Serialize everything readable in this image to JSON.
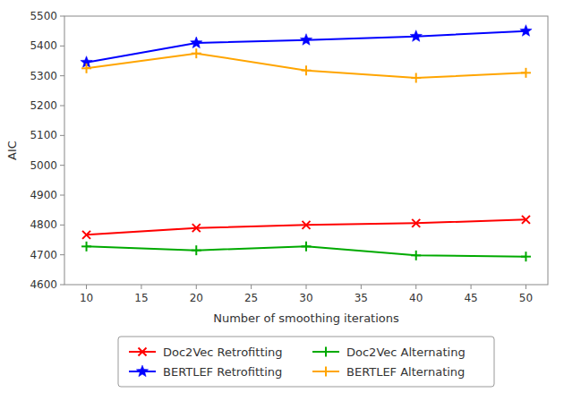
{
  "chart_data": {
    "type": "line",
    "x_label": "Number of smoothing iterations",
    "y_label": "AIC",
    "x": [
      10,
      20,
      30,
      40,
      50
    ],
    "series": [
      {
        "name": "Doc2Vec Retrofitting",
        "color": "#ff0000",
        "marker": "x",
        "values": [
          4767,
          4790,
          4800,
          4806,
          4818
        ]
      },
      {
        "name": "Doc2Vec Alternating",
        "color": "#00aa00",
        "marker": "plus",
        "values": [
          4728,
          4715,
          4728,
          4698,
          4694
        ]
      },
      {
        "name": "BERTLEF Retrofitting",
        "color": "#0000ff",
        "marker": "star",
        "values": [
          5345,
          5410,
          5420,
          5432,
          5450
        ]
      },
      {
        "name": "BERTLEF Alternating",
        "color": "#ffa500",
        "marker": "plus",
        "values": [
          5325,
          5375,
          5318,
          5293,
          5310
        ]
      }
    ],
    "xlim": [
      8,
      52
    ],
    "xticks": [
      10,
      15,
      20,
      25,
      30,
      35,
      40,
      45,
      50
    ],
    "ylim": [
      4600,
      5500
    ],
    "yticks": [
      4600,
      4700,
      4800,
      4900,
      5000,
      5100,
      5200,
      5300,
      5400,
      5500
    ],
    "grid": false,
    "legend": "bottom"
  }
}
